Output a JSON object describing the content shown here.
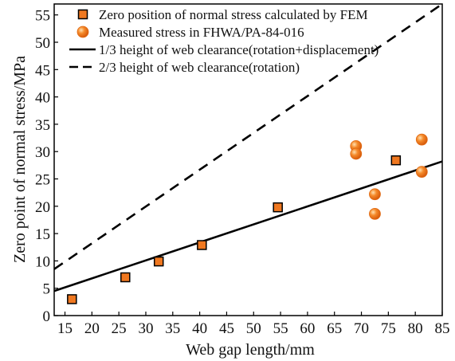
{
  "chart_data": {
    "type": "scatter",
    "title": "",
    "xlabel": "Web gap length/mm",
    "ylabel": "Zero point of normal stress/MPa",
    "xlim": [
      13,
      85
    ],
    "ylim": [
      0,
      57
    ],
    "x_ticks": [
      "15",
      "20",
      "25",
      "30",
      "35",
      "40",
      "45",
      "50",
      "55",
      "60",
      "65",
      "70",
      "75",
      "80",
      "85"
    ],
    "y_ticks": [
      "0",
      "5",
      "10",
      "15",
      "20",
      "25",
      "30",
      "35",
      "40",
      "45",
      "50",
      "55"
    ],
    "grid": false,
    "legend_position": "top-left",
    "series": [
      {
        "name": "Zero position of normal stress calculated by FEM",
        "kind": "square-marker",
        "color": "#f07820",
        "points": [
          [
            16.3,
            3.0
          ],
          [
            26.2,
            7.0
          ],
          [
            32.4,
            9.9
          ],
          [
            40.4,
            12.9
          ],
          [
            54.5,
            19.8
          ],
          [
            76.4,
            28.4
          ]
        ]
      },
      {
        "name": "Measured stress in FHWA/PA-84-016",
        "kind": "circle-marker",
        "color": "#f07820",
        "points": [
          [
            69.0,
            31.0
          ],
          [
            69.0,
            29.6
          ],
          [
            72.5,
            22.2
          ],
          [
            72.5,
            18.6
          ],
          [
            81.2,
            32.2
          ],
          [
            81.2,
            26.3
          ]
        ]
      },
      {
        "name": "1/3 height of web clearance(rotation+displacement)",
        "kind": "solid-line",
        "color": "#000000",
        "points": [
          [
            13,
            4.5
          ],
          [
            85,
            28.2
          ]
        ]
      },
      {
        "name": "2/3 height of web clearance(rotation)",
        "kind": "dashed-line",
        "color": "#000000",
        "points": [
          [
            13,
            8.5
          ],
          [
            85,
            57.0
          ]
        ]
      }
    ]
  }
}
